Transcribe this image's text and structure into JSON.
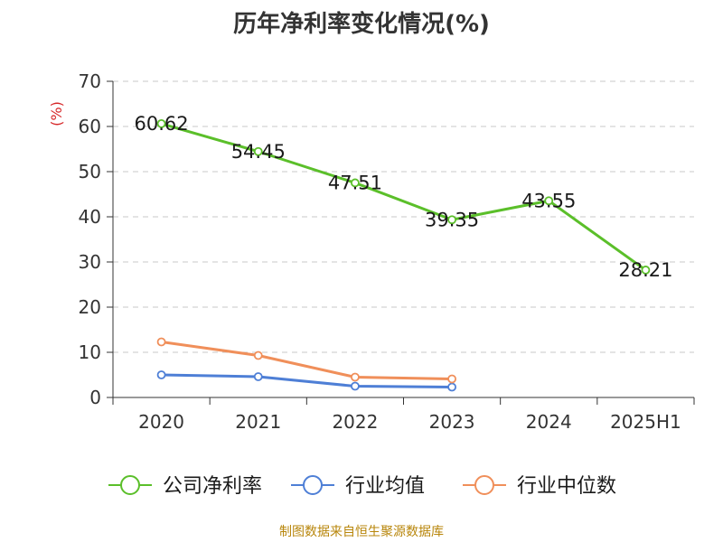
{
  "chart_data": {
    "type": "line",
    "title": "历年净利率变化情况(%)",
    "ylabel": "(%)",
    "xlabel": "",
    "categories": [
      "2020",
      "2021",
      "2022",
      "2023",
      "2024",
      "2025H1"
    ],
    "ylim": [
      0,
      70
    ],
    "yticks": [
      0,
      10,
      20,
      30,
      40,
      50,
      60,
      70
    ],
    "grid": true,
    "legend_position": "bottom",
    "series": [
      {
        "name": "公司净利率",
        "color": "#5bbf2a",
        "values": [
          60.62,
          54.45,
          47.51,
          39.35,
          43.55,
          28.21
        ],
        "labels": [
          "60.62",
          "54.45",
          "47.51",
          "39.35",
          "43.55",
          "28.21"
        ]
      },
      {
        "name": "行业均值",
        "color": "#4e7fd6",
        "values": [
          5.0,
          4.6,
          2.5,
          2.3,
          null,
          null
        ]
      },
      {
        "name": "行业中位数",
        "color": "#f08f5a",
        "values": [
          12.3,
          9.3,
          4.5,
          4.1,
          null,
          null
        ]
      }
    ]
  },
  "source_note": "制图数据来自恒生聚源数据库"
}
